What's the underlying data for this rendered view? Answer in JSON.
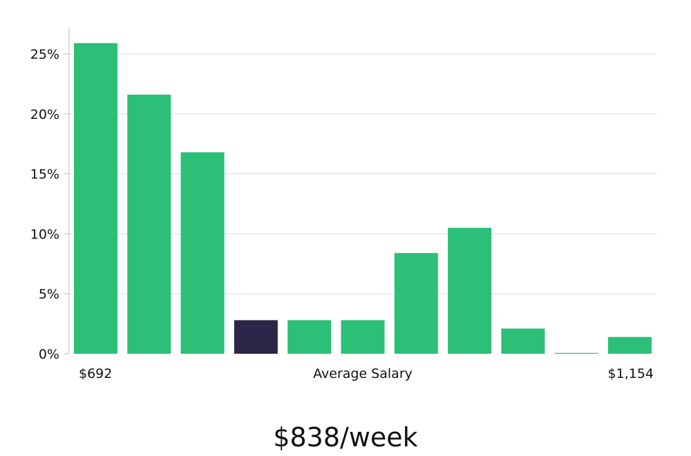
{
  "colors": {
    "bar": "#2bbf77",
    "highlight": "#2b2647",
    "grid": "#dddddd",
    "axis": "#bbbbbb"
  },
  "chart_data": {
    "type": "bar",
    "xlabel": "Average Salary",
    "x_min_label": "$692",
    "x_max_label": "$1,154",
    "y_format": "percent",
    "ylim": [
      0,
      27
    ],
    "y_ticks": [
      0,
      5,
      10,
      15,
      20,
      25
    ],
    "y_tick_labels": [
      "0%",
      "5%",
      "10%",
      "15%",
      "20%",
      "25%"
    ],
    "values": [
      25.9,
      21.6,
      16.8,
      2.8,
      2.8,
      2.8,
      8.4,
      10.5,
      2.1,
      0.07,
      1.4
    ],
    "highlight_index": 3,
    "grid": true
  },
  "footer": {
    "headline": "$838/week"
  }
}
